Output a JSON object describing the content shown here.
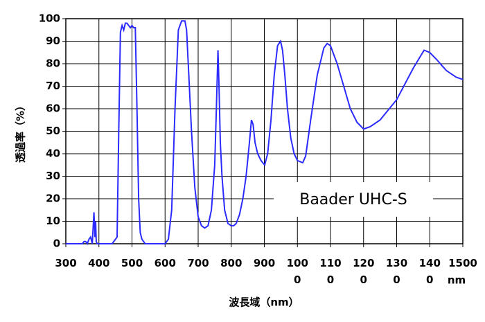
{
  "chart_data": {
    "type": "line",
    "xlabel": "波長域（nm）",
    "ylabel": "透過率（%）",
    "x_unit": "nm",
    "annotation": "Baader UHC-S",
    "xlim": [
      300,
      1500
    ],
    "ylim": [
      0,
      100
    ],
    "xticks": [
      300,
      400,
      500,
      600,
      700,
      800,
      900,
      1000,
      1100,
      1200,
      1300,
      1400,
      1500
    ],
    "yticks": [
      0,
      10,
      20,
      30,
      40,
      50,
      60,
      70,
      80,
      90,
      100
    ],
    "grid": true,
    "x": [
      300,
      350,
      355,
      360,
      365,
      370,
      375,
      380,
      385,
      388,
      390,
      392,
      395,
      440,
      455,
      460,
      465,
      470,
      475,
      480,
      485,
      490,
      495,
      500,
      505,
      510,
      515,
      520,
      525,
      530,
      540,
      600,
      610,
      620,
      630,
      640,
      650,
      660,
      665,
      670,
      680,
      690,
      700,
      710,
      720,
      730,
      740,
      750,
      755,
      760,
      763,
      767,
      772,
      780,
      790,
      800,
      807,
      815,
      825,
      835,
      845,
      855,
      861,
      866,
      872,
      880,
      890,
      901,
      910,
      920,
      930,
      940,
      949,
      955,
      962,
      970,
      980,
      990,
      1000,
      1016,
      1025,
      1040,
      1060,
      1080,
      1090,
      1100,
      1120,
      1140,
      1160,
      1180,
      1200,
      1220,
      1250,
      1300,
      1350,
      1383,
      1400,
      1420,
      1450,
      1480,
      1500
    ],
    "series": [
      {
        "name": "Baader UHC-S",
        "color": "#2b2bff",
        "values": [
          0,
          0,
          1,
          1,
          0,
          2,
          3,
          0,
          14,
          3,
          10,
          1,
          0,
          0,
          3,
          50,
          94,
          97,
          95,
          98,
          98,
          97,
          96,
          97,
          96,
          96,
          60,
          20,
          5,
          2,
          0,
          0,
          2,
          15,
          60,
          95,
          99,
          99,
          95,
          80,
          50,
          25,
          12,
          8,
          7,
          8,
          15,
          35,
          60,
          86,
          70,
          45,
          30,
          15,
          9,
          8,
          8,
          9,
          13,
          20,
          30,
          45,
          55,
          53,
          45,
          40,
          37,
          35,
          40,
          55,
          75,
          88,
          90,
          86,
          75,
          60,
          47,
          40,
          37,
          36,
          39,
          55,
          75,
          87,
          89,
          88,
          80,
          70,
          60,
          54,
          51,
          52,
          55,
          64,
          78,
          86,
          85,
          82,
          77,
          74,
          73
        ]
      }
    ]
  }
}
